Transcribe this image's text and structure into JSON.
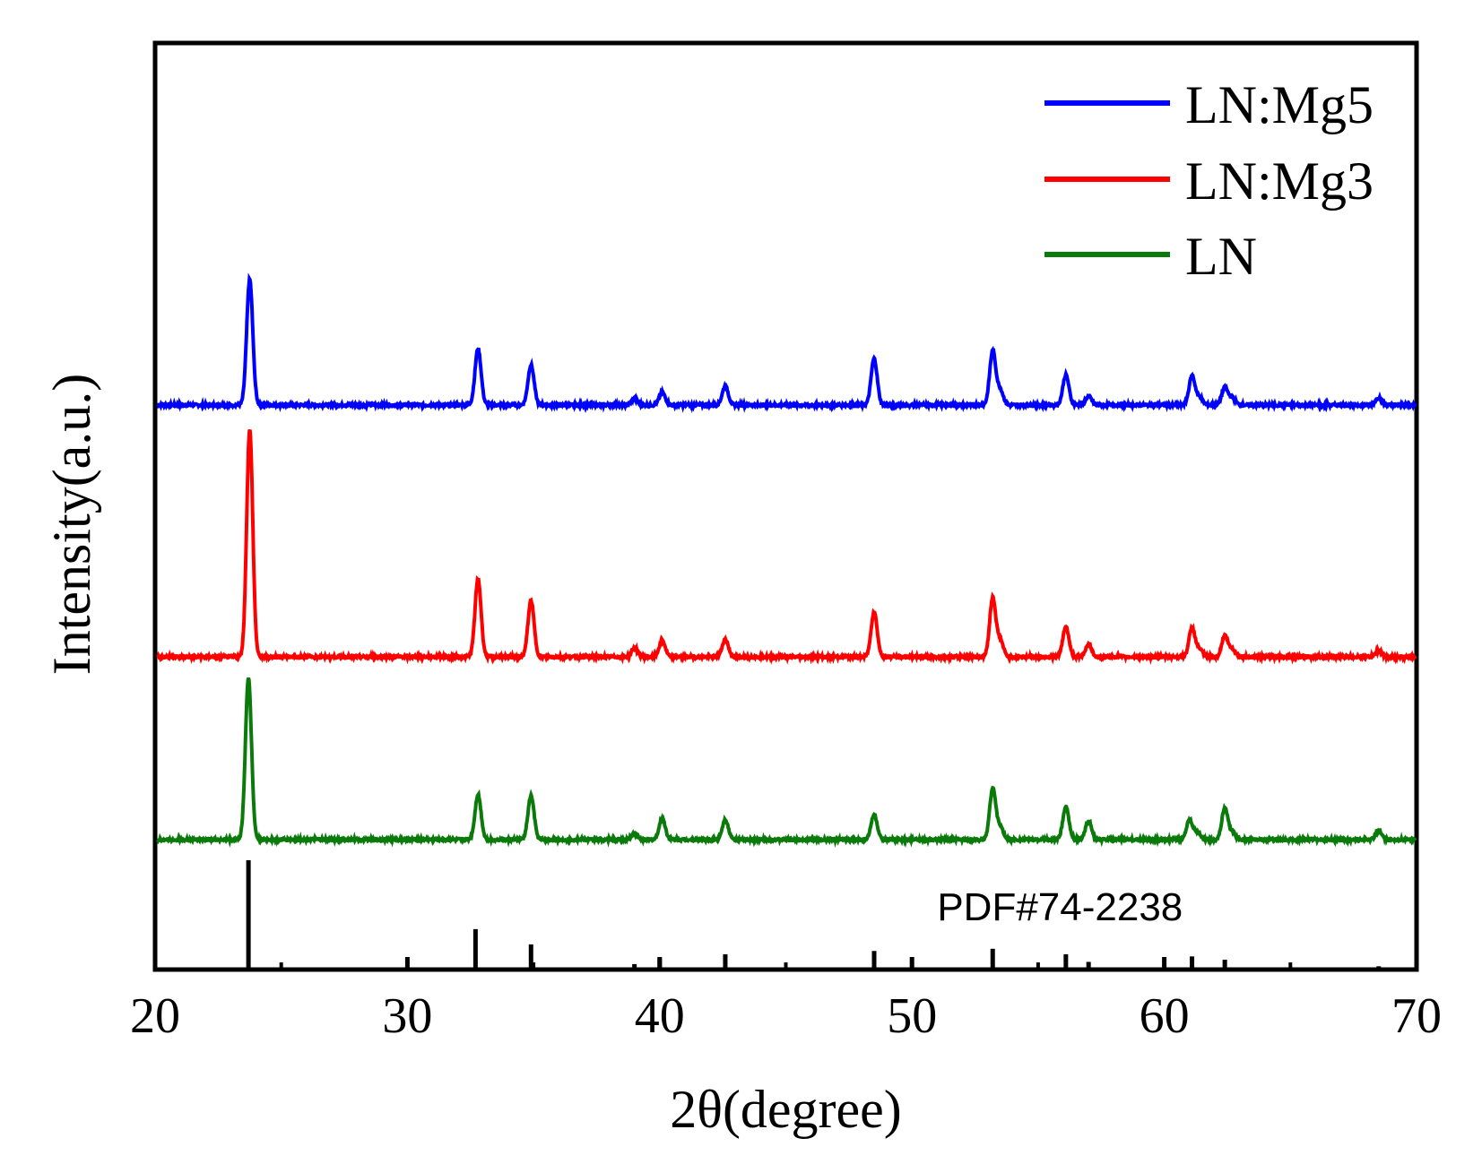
{
  "chart_data": {
    "type": "line",
    "title": "",
    "xlabel": "2θ(degree)",
    "ylabel": "Intensity(a.u.)",
    "xlim": [
      20,
      70
    ],
    "xticks": [
      20,
      30,
      40,
      50,
      60,
      70
    ],
    "x_minor_ticks": [
      25,
      35,
      45,
      55,
      65
    ],
    "yticks_shown": false,
    "legend_position": "top-right",
    "series": [
      {
        "name": "LN:Mg5",
        "color": "#0000ff",
        "baseline": 0.0,
        "peaks": [
          [
            23.75,
            1.0
          ],
          [
            32.8,
            0.45
          ],
          [
            34.9,
            0.32
          ],
          [
            39.0,
            0.05
          ],
          [
            40.1,
            0.1
          ],
          [
            42.6,
            0.15
          ],
          [
            48.5,
            0.37
          ],
          [
            53.2,
            0.43
          ],
          [
            53.5,
            0.12
          ],
          [
            56.1,
            0.24
          ],
          [
            57.0,
            0.07
          ],
          [
            61.1,
            0.23
          ],
          [
            61.4,
            0.06
          ],
          [
            62.4,
            0.14
          ],
          [
            62.7,
            0.06
          ],
          [
            68.5,
            0.06
          ]
        ]
      },
      {
        "name": "LN:Mg3",
        "color": "#ff0000",
        "baseline": 0.0,
        "peaks": [
          [
            23.75,
            1.81
          ],
          [
            32.8,
            0.62
          ],
          [
            34.9,
            0.45
          ],
          [
            39.0,
            0.07
          ],
          [
            40.1,
            0.13
          ],
          [
            42.6,
            0.14
          ],
          [
            48.5,
            0.36
          ],
          [
            53.2,
            0.47
          ],
          [
            53.5,
            0.13
          ],
          [
            56.1,
            0.24
          ],
          [
            57.0,
            0.1
          ],
          [
            61.1,
            0.23
          ],
          [
            61.4,
            0.06
          ],
          [
            62.4,
            0.17
          ],
          [
            62.7,
            0.06
          ],
          [
            68.5,
            0.05
          ]
        ]
      },
      {
        "name": "LN",
        "color": "#0a7a0a",
        "baseline": 0.0,
        "peaks": [
          [
            23.7,
            1.29
          ],
          [
            32.8,
            0.36
          ],
          [
            34.9,
            0.35
          ],
          [
            39.0,
            0.05
          ],
          [
            40.1,
            0.17
          ],
          [
            42.6,
            0.16
          ],
          [
            48.5,
            0.2
          ],
          [
            53.2,
            0.41
          ],
          [
            53.5,
            0.1
          ],
          [
            56.1,
            0.26
          ],
          [
            57.0,
            0.15
          ],
          [
            61.0,
            0.16
          ],
          [
            61.3,
            0.06
          ],
          [
            62.4,
            0.25
          ],
          [
            62.7,
            0.06
          ],
          [
            68.5,
            0.07
          ]
        ]
      }
    ],
    "reference": {
      "label": "PDF#74-2238",
      "color": "#000000",
      "lines": [
        [
          23.7,
          1.0
        ],
        [
          32.7,
          0.37
        ],
        [
          34.9,
          0.23
        ],
        [
          39.0,
          0.05
        ],
        [
          40.0,
          0.1
        ],
        [
          42.6,
          0.14
        ],
        [
          48.5,
          0.17
        ],
        [
          53.2,
          0.19
        ],
        [
          56.1,
          0.14
        ],
        [
          57.0,
          0.07
        ],
        [
          61.1,
          0.12
        ],
        [
          62.4,
          0.09
        ],
        [
          68.5,
          0.03
        ]
      ]
    }
  }
}
